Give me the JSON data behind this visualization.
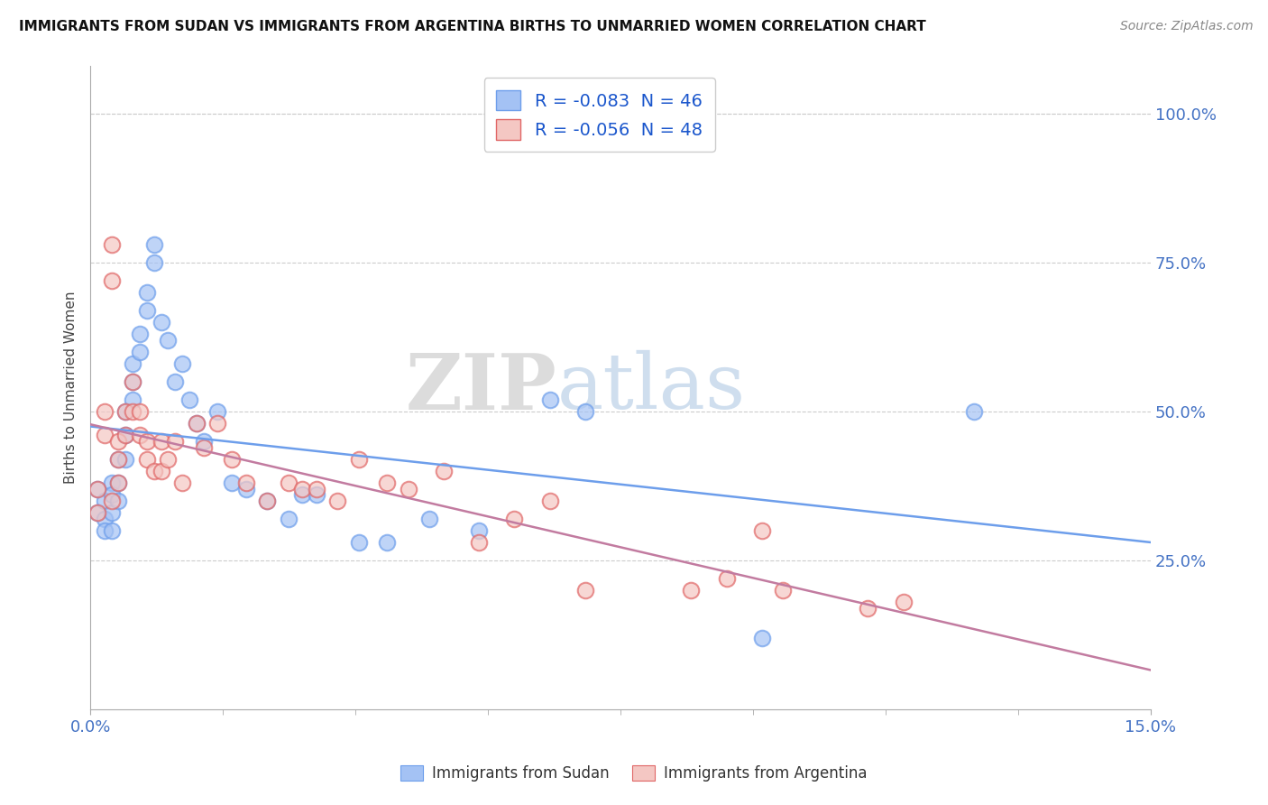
{
  "title": "IMMIGRANTS FROM SUDAN VS IMMIGRANTS FROM ARGENTINA BIRTHS TO UNMARRIED WOMEN CORRELATION CHART",
  "source": "Source: ZipAtlas.com",
  "ylabel": "Births to Unmarried Women",
  "legend1_label": "R = -0.083  N = 46",
  "legend2_label": "R = -0.056  N = 48",
  "bottom_label1": "Immigrants from Sudan",
  "bottom_label2": "Immigrants from Argentina",
  "color_sudan": "#a4c2f4",
  "color_argentina": "#f4c7c3",
  "color_sudan_edge": "#6d9eeb",
  "color_argentina_edge": "#e06666",
  "color_line_sudan": "#6d9eeb",
  "color_line_argentina": "#c27ba0",
  "xmin": 0.0,
  "xmax": 0.15,
  "ymin": 0.0,
  "ymax": 1.08,
  "ytick_vals": [
    0.25,
    0.5,
    0.75,
    1.0
  ],
  "ytick_labels": [
    "25.0%",
    "50.0%",
    "75.0%",
    "100.0%"
  ],
  "xtick_vals": [
    0.0,
    0.15
  ],
  "xtick_labels": [
    "0.0%",
    "15.0%"
  ],
  "sudan_x": [
    0.001,
    0.001,
    0.002,
    0.002,
    0.002,
    0.003,
    0.003,
    0.003,
    0.003,
    0.004,
    0.004,
    0.004,
    0.005,
    0.005,
    0.005,
    0.006,
    0.006,
    0.006,
    0.007,
    0.007,
    0.008,
    0.008,
    0.009,
    0.009,
    0.01,
    0.011,
    0.012,
    0.013,
    0.014,
    0.015,
    0.016,
    0.018,
    0.02,
    0.022,
    0.025,
    0.028,
    0.03,
    0.032,
    0.038,
    0.042,
    0.048,
    0.055,
    0.065,
    0.07,
    0.095,
    0.125
  ],
  "sudan_y": [
    0.37,
    0.33,
    0.35,
    0.32,
    0.3,
    0.38,
    0.36,
    0.33,
    0.3,
    0.42,
    0.38,
    0.35,
    0.5,
    0.46,
    0.42,
    0.58,
    0.55,
    0.52,
    0.63,
    0.6,
    0.7,
    0.67,
    0.78,
    0.75,
    0.65,
    0.62,
    0.55,
    0.58,
    0.52,
    0.48,
    0.45,
    0.5,
    0.38,
    0.37,
    0.35,
    0.32,
    0.36,
    0.36,
    0.28,
    0.28,
    0.32,
    0.3,
    0.52,
    0.5,
    0.12,
    0.5
  ],
  "argentina_x": [
    0.001,
    0.001,
    0.002,
    0.002,
    0.003,
    0.003,
    0.003,
    0.004,
    0.004,
    0.004,
    0.005,
    0.005,
    0.006,
    0.006,
    0.007,
    0.007,
    0.008,
    0.008,
    0.009,
    0.01,
    0.01,
    0.011,
    0.012,
    0.013,
    0.015,
    0.016,
    0.018,
    0.02,
    0.022,
    0.025,
    0.028,
    0.03,
    0.032,
    0.035,
    0.038,
    0.042,
    0.045,
    0.05,
    0.055,
    0.06,
    0.065,
    0.07,
    0.085,
    0.09,
    0.095,
    0.098,
    0.11,
    0.115
  ],
  "argentina_y": [
    0.37,
    0.33,
    0.5,
    0.46,
    0.78,
    0.72,
    0.35,
    0.45,
    0.42,
    0.38,
    0.5,
    0.46,
    0.55,
    0.5,
    0.5,
    0.46,
    0.45,
    0.42,
    0.4,
    0.45,
    0.4,
    0.42,
    0.45,
    0.38,
    0.48,
    0.44,
    0.48,
    0.42,
    0.38,
    0.35,
    0.38,
    0.37,
    0.37,
    0.35,
    0.42,
    0.38,
    0.37,
    0.4,
    0.28,
    0.32,
    0.35,
    0.2,
    0.2,
    0.22,
    0.3,
    0.2,
    0.17,
    0.18
  ]
}
